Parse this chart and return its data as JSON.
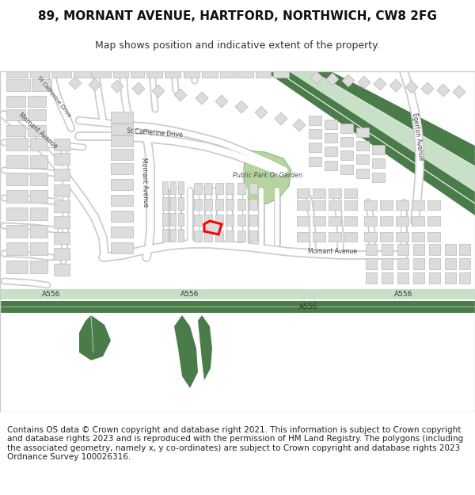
{
  "title": "89, MORNANT AVENUE, HARTFORD, NORTHWICH, CW8 2FG",
  "subtitle": "Map shows position and indicative extent of the property.",
  "title_fontsize": 11,
  "subtitle_fontsize": 9,
  "footer_text": "Contains OS data © Crown copyright and database right 2021. This information is subject to Crown copyright and database rights 2023 and is reproduced with the permission of HM Land Registry. The polygons (including the associated geometry, namely x, y co-ordinates) are subject to Crown copyright and database rights 2023 Ordnance Survey 100026316.",
  "footer_fontsize": 7.5,
  "background_color": "#ffffff",
  "map_bg": "#f2f0eb",
  "green_dark": "#4a7c4a",
  "green_mid": "#6aaa6a",
  "green_pale": "#c8dfc8",
  "green_light": "#b5d4a0",
  "building_fill": "#dcdcdc",
  "building_edge": "#b8b8b8",
  "road_white": "#ffffff",
  "road_edge": "#cccccc",
  "highlight_color": "#ff0000",
  "text_color": "#444444",
  "map_border_color": "#cccccc"
}
